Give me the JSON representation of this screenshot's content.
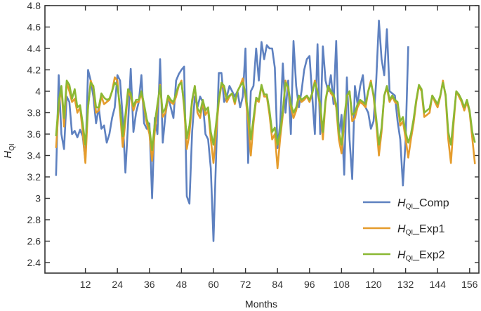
{
  "chart_data": {
    "type": "line",
    "title": "",
    "xlabel": "Months",
    "ylabel": "H_QI",
    "xlim": [
      0,
      158
    ],
    "ylim": [
      2.3,
      4.8
    ],
    "xticks": [
      12,
      24,
      36,
      48,
      60,
      72,
      84,
      96,
      108,
      120,
      132,
      144,
      156
    ],
    "yticks": [
      2.4,
      2.6,
      2.8,
      3,
      3.2,
      3.4,
      3.6,
      3.8,
      4,
      4.2,
      4.4,
      4.6,
      4.8
    ],
    "ytick_labels": [
      "2.4",
      "2.6",
      "2.8",
      "3",
      "3.2",
      "3.4",
      "3.6",
      "3.8",
      "4",
      "4.2",
      "4.4",
      "4.6",
      "4.8"
    ],
    "grid": false,
    "legend_position": "lower right",
    "series": [
      {
        "name": "H_QI_Comp",
        "label_main": "H",
        "label_sub": "QI",
        "label_suffix": "_Comp",
        "color": "#5E81C0",
        "x_start": 1,
        "values": [
          3.21,
          4.15,
          3.6,
          3.46,
          3.95,
          3.9,
          3.6,
          3.63,
          3.57,
          3.64,
          3.58,
          3.35,
          4.2,
          4.1,
          3.95,
          3.7,
          3.85,
          3.65,
          3.68,
          3.52,
          3.6,
          3.75,
          3.85,
          4.15,
          4.1,
          3.75,
          3.24,
          3.7,
          4.21,
          3.62,
          3.8,
          3.9,
          4.15,
          3.7,
          3.65,
          3.7,
          3.0,
          3.75,
          3.6,
          4.3,
          3.52,
          3.78,
          3.95,
          3.85,
          3.75,
          4.1,
          4.16,
          4.2,
          4.23,
          3.02,
          2.95,
          3.62,
          3.95,
          3.85,
          3.95,
          3.9,
          3.6,
          3.55,
          3.28,
          2.6,
          3.4,
          4.17,
          4.17,
          3.9,
          3.95,
          4.05,
          4.0,
          3.95,
          4.0,
          3.85,
          3.95,
          4.4,
          3.33,
          4.0,
          4.05,
          4.4,
          4.1,
          4.46,
          4.3,
          4.43,
          4.4,
          4.4,
          4.22,
          3.47,
          3.7,
          4.26,
          3.8,
          4.1,
          3.6,
          4.47,
          4.05,
          3.85,
          4.0,
          4.2,
          4.3,
          4.33,
          3.96,
          3.6,
          4.44,
          3.6,
          4.42,
          4.1,
          4.0,
          4.15,
          3.88,
          4.47,
          3.57,
          3.78,
          3.22,
          4.13,
          3.55,
          3.18,
          4.05,
          3.88,
          4.05,
          4.15,
          3.85,
          3.8,
          3.65,
          3.72,
          4.1,
          4.66,
          4.3,
          4.15,
          4.58,
          4.0,
          3.98,
          3.96,
          3.72,
          3.55,
          3.12,
          3.54,
          4.42
        ],
        "visible_range": [
          1,
          132
        ]
      },
      {
        "name": "H_QI_Exp1",
        "label_main": "H",
        "label_sub": "QI",
        "label_suffix": "_Exp1",
        "color": "#E59C2C",
        "x_start": 1,
        "values": [
          3.47,
          3.85,
          4.04,
          3.67,
          4.08,
          4.0,
          3.9,
          3.93,
          3.8,
          3.85,
          3.62,
          3.33,
          3.85,
          4.1,
          4.03,
          3.8,
          3.82,
          3.95,
          3.88,
          3.9,
          3.92,
          4.0,
          4.13,
          4.1,
          3.8,
          3.48,
          3.72,
          4.0,
          3.95,
          3.82,
          3.9,
          3.9,
          3.98,
          3.85,
          3.7,
          3.6,
          3.35,
          3.62,
          3.85,
          4.06,
          3.76,
          3.8,
          3.94,
          3.9,
          3.88,
          3.95,
          4.05,
          4.1,
          3.85,
          3.46,
          3.6,
          3.9,
          4.05,
          3.8,
          3.75,
          3.9,
          3.78,
          3.82,
          3.55,
          3.33,
          3.62,
          3.9,
          4.06,
          4.03,
          3.9,
          3.95,
          3.98,
          3.88,
          4.0,
          4.05,
          4.12,
          3.95,
          3.72,
          3.4,
          3.7,
          3.92,
          3.9,
          4.05,
          3.95,
          3.95,
          3.78,
          3.55,
          3.6,
          3.28,
          3.56,
          3.78,
          4.1,
          4.02,
          3.85,
          3.75,
          3.82,
          3.95,
          3.9,
          3.92,
          3.95,
          3.9,
          3.98,
          4.1,
          4.0,
          3.85,
          3.55,
          3.9,
          4.05,
          3.98,
          3.95,
          3.85,
          3.55,
          3.42,
          3.7,
          3.95,
          4.0,
          3.72,
          3.75,
          3.85,
          3.9,
          3.88,
          3.85,
          4.0,
          4.1,
          3.95,
          3.7,
          3.4,
          3.62,
          3.96,
          4.03,
          3.9,
          3.95,
          3.9,
          3.88,
          3.68,
          3.72,
          3.56,
          3.38,
          3.55,
          3.7,
          3.9,
          4.05,
          4.0,
          3.76,
          3.78,
          3.8,
          3.96,
          3.9,
          3.85,
          3.95,
          4.1,
          3.95,
          3.55,
          3.33,
          3.7,
          4.0,
          3.95,
          3.9,
          3.82,
          3.9,
          3.8,
          3.56,
          3.32
        ],
        "visible_range": [
          1,
          156
        ]
      },
      {
        "name": "H_QI_Exp2",
        "label_main": "H",
        "label_sub": "QI",
        "label_suffix": "_Exp2",
        "color": "#8AB833",
        "x_start": 1,
        "values": [
          3.58,
          3.9,
          4.05,
          3.75,
          4.1,
          4.06,
          3.93,
          4.02,
          3.85,
          3.87,
          3.7,
          3.5,
          3.85,
          4.08,
          4.05,
          3.85,
          3.85,
          3.98,
          3.94,
          3.92,
          3.93,
          4.0,
          4.08,
          4.05,
          3.85,
          3.58,
          3.78,
          4.02,
          3.98,
          3.86,
          3.92,
          3.92,
          4.0,
          3.88,
          3.74,
          3.66,
          3.45,
          3.7,
          3.88,
          4.05,
          3.8,
          3.84,
          3.96,
          3.92,
          3.9,
          3.98,
          4.06,
          4.08,
          3.88,
          3.56,
          3.68,
          3.92,
          4.05,
          3.84,
          3.8,
          3.92,
          3.82,
          3.85,
          3.62,
          3.5,
          3.7,
          3.92,
          4.08,
          4.05,
          3.93,
          3.96,
          3.98,
          3.9,
          4.0,
          4.05,
          4.08,
          3.98,
          3.8,
          3.55,
          3.75,
          3.94,
          3.92,
          4.06,
          3.97,
          3.97,
          3.82,
          3.62,
          3.66,
          3.5,
          3.62,
          3.82,
          4.08,
          4.04,
          3.88,
          3.8,
          3.85,
          3.96,
          3.92,
          3.94,
          3.96,
          3.92,
          3.98,
          4.08,
          4.0,
          3.88,
          3.62,
          3.92,
          4.05,
          4.0,
          3.97,
          3.88,
          3.62,
          3.5,
          3.75,
          3.96,
          4.0,
          3.78,
          3.8,
          3.88,
          3.92,
          3.9,
          3.88,
          4.0,
          4.08,
          3.97,
          3.75,
          3.5,
          3.66,
          3.96,
          4.05,
          3.92,
          3.96,
          3.92,
          3.9,
          3.72,
          3.76,
          3.62,
          3.52,
          3.6,
          3.74,
          3.92,
          4.06,
          4.02,
          3.8,
          3.82,
          3.84,
          3.96,
          3.92,
          3.88,
          3.96,
          4.08,
          3.97,
          3.62,
          3.5,
          3.75,
          4.0,
          3.97,
          3.92,
          3.85,
          3.92,
          3.82,
          3.62,
          3.52
        ],
        "visible_range": [
          1,
          156
        ]
      }
    ]
  }
}
